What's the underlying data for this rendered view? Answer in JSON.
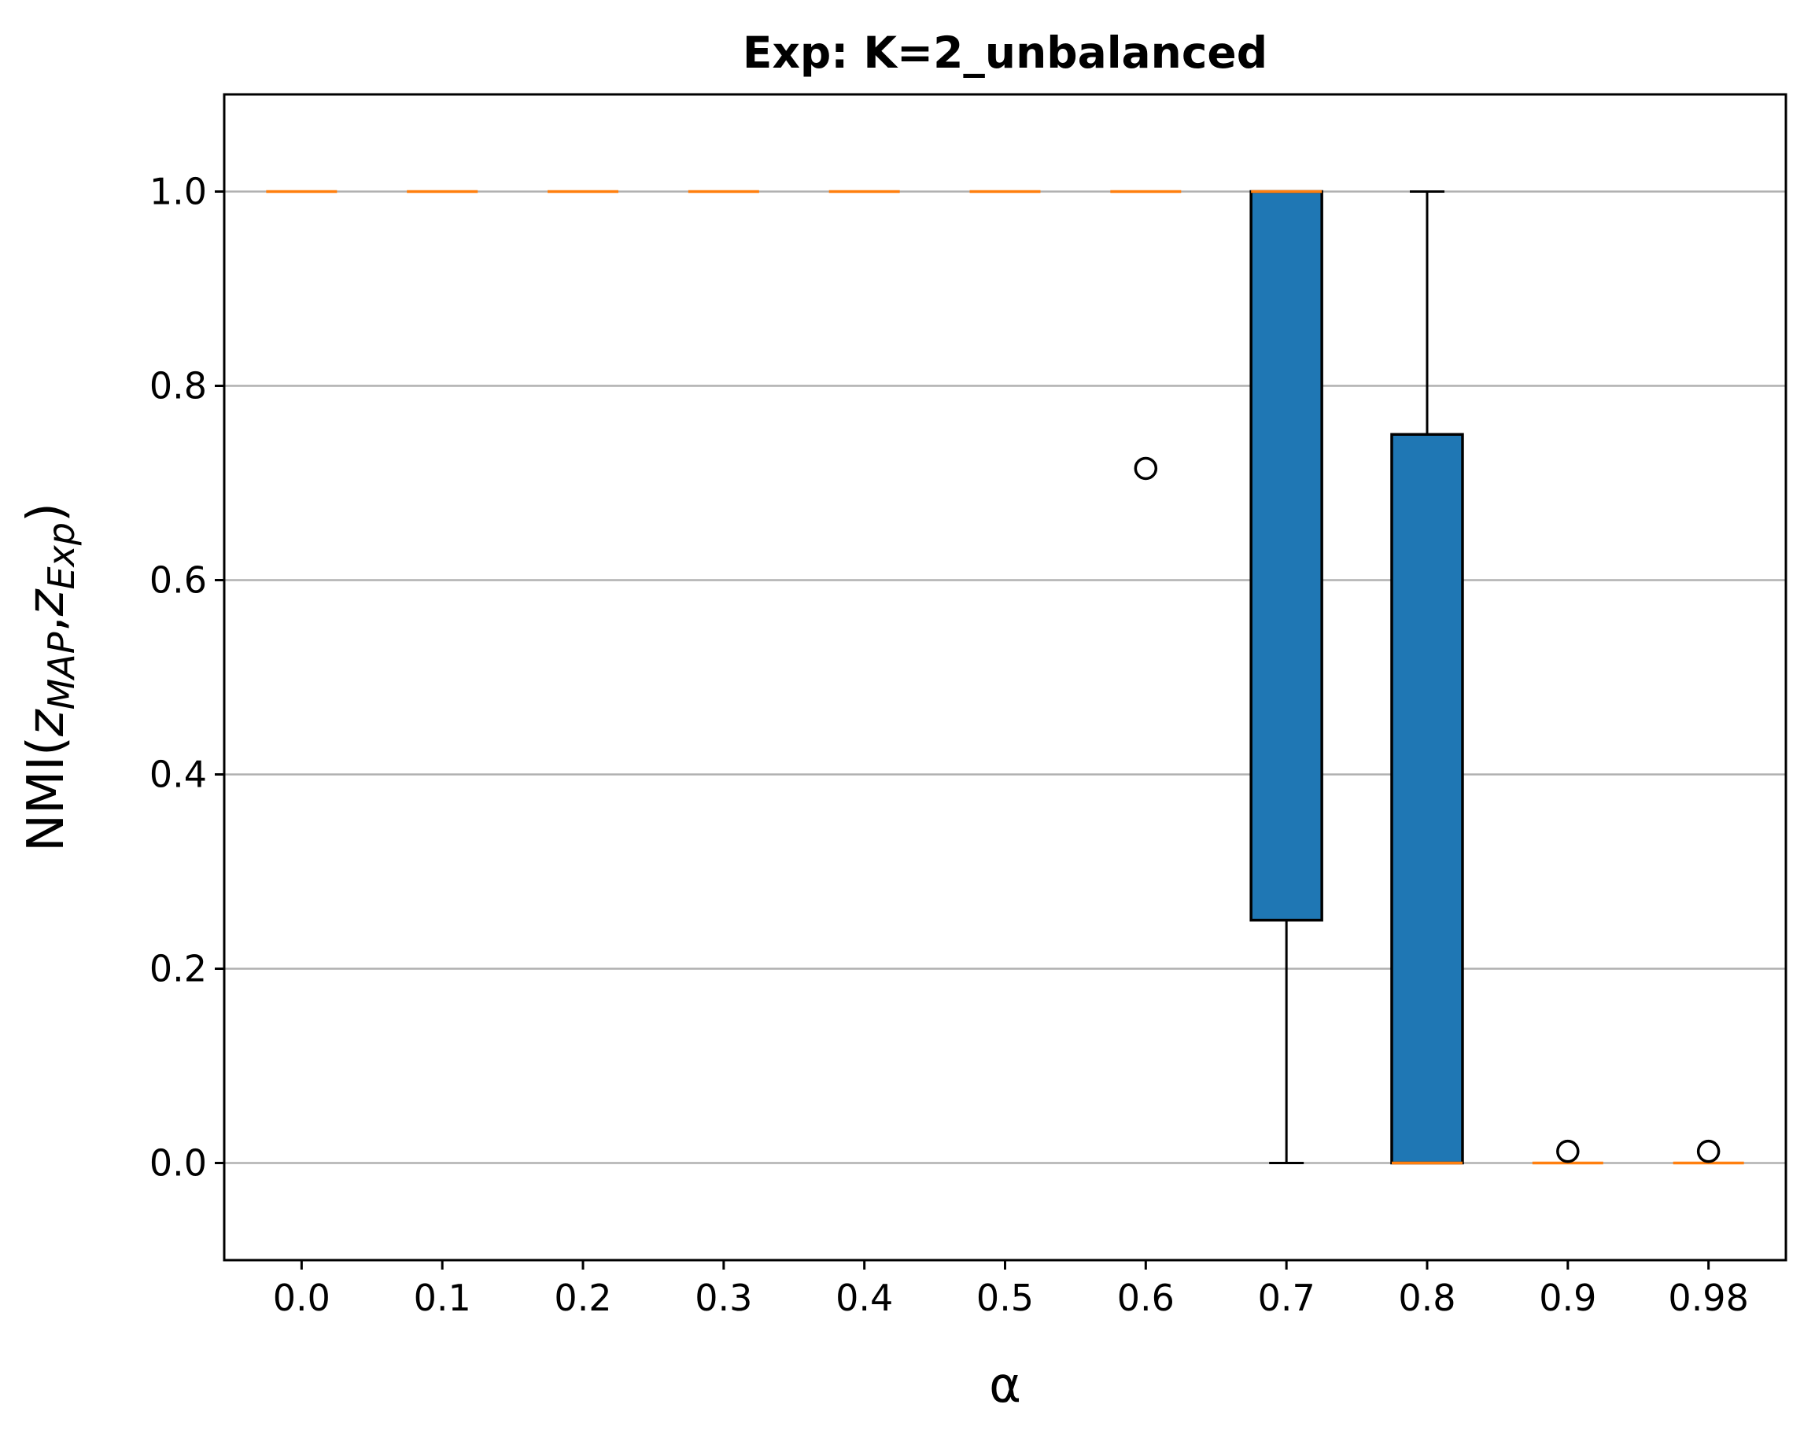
{
  "chart_data": {
    "type": "boxplot",
    "title": "Exp: K=2_unbalanced",
    "xlabel": "α",
    "ylabel": {
      "prefix": "NMI(",
      "var1": "z",
      "sub1": "MAP",
      "sep": ",",
      "var2": "z",
      "sub2": "Exp",
      "suffix": ")"
    },
    "ylim": [
      -0.1,
      1.1
    ],
    "yticks": [
      "0.0",
      "0.2",
      "0.4",
      "0.6",
      "0.8",
      "1.0"
    ],
    "ytick_values": [
      0.0,
      0.2,
      0.4,
      0.6,
      0.8,
      1.0
    ],
    "grid": "horizontal",
    "categories": [
      "0.0",
      "0.1",
      "0.2",
      "0.3",
      "0.4",
      "0.5",
      "0.6",
      "0.7",
      "0.8",
      "0.9",
      "0.98"
    ],
    "boxes": [
      {
        "whisker_low": 1.0,
        "q1": 1.0,
        "median": 1.0,
        "q3": 1.0,
        "whisker_high": 1.0,
        "outliers": []
      },
      {
        "whisker_low": 1.0,
        "q1": 1.0,
        "median": 1.0,
        "q3": 1.0,
        "whisker_high": 1.0,
        "outliers": []
      },
      {
        "whisker_low": 1.0,
        "q1": 1.0,
        "median": 1.0,
        "q3": 1.0,
        "whisker_high": 1.0,
        "outliers": []
      },
      {
        "whisker_low": 1.0,
        "q1": 1.0,
        "median": 1.0,
        "q3": 1.0,
        "whisker_high": 1.0,
        "outliers": []
      },
      {
        "whisker_low": 1.0,
        "q1": 1.0,
        "median": 1.0,
        "q3": 1.0,
        "whisker_high": 1.0,
        "outliers": []
      },
      {
        "whisker_low": 1.0,
        "q1": 1.0,
        "median": 1.0,
        "q3": 1.0,
        "whisker_high": 1.0,
        "outliers": []
      },
      {
        "whisker_low": 1.0,
        "q1": 1.0,
        "median": 1.0,
        "q3": 1.0,
        "whisker_high": 1.0,
        "outliers": [
          0.715
        ]
      },
      {
        "whisker_low": 0.0,
        "q1": 0.25,
        "median": 1.0,
        "q3": 1.0,
        "whisker_high": 1.0,
        "outliers": []
      },
      {
        "whisker_low": 0.0,
        "q1": 0.0,
        "median": 0.0,
        "q3": 0.75,
        "whisker_high": 1.0,
        "outliers": []
      },
      {
        "whisker_low": 0.0,
        "q1": 0.0,
        "median": 0.0,
        "q3": 0.0,
        "whisker_high": 0.0,
        "outliers": [
          0.012
        ]
      },
      {
        "whisker_low": 0.0,
        "q1": 0.0,
        "median": 0.0,
        "q3": 0.0,
        "whisker_high": 0.0,
        "outliers": [
          0.012
        ]
      }
    ],
    "colors": {
      "box_fill": "#1f77b4",
      "median": "#ff7f0e",
      "edge": "#000000",
      "grid": "#b0b0b0"
    }
  }
}
